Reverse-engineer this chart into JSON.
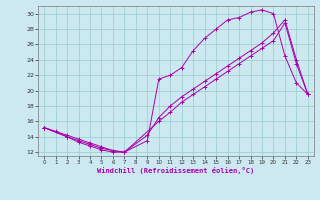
{
  "xlabel": "Windchill (Refroidissement éolien,°C)",
  "bg_color": "#cce8f0",
  "line_color": "#aa00aa",
  "grid_color": "#99cccc",
  "xlim": [
    -0.5,
    23.5
  ],
  "ylim": [
    11.5,
    31.0
  ],
  "xticks": [
    0,
    1,
    2,
    3,
    4,
    5,
    6,
    7,
    8,
    9,
    10,
    11,
    12,
    13,
    14,
    15,
    16,
    17,
    18,
    19,
    20,
    21,
    22,
    23
  ],
  "yticks": [
    12,
    14,
    16,
    18,
    20,
    22,
    24,
    26,
    28,
    30
  ],
  "s1_x": [
    0,
    1,
    2,
    3,
    4,
    5,
    6,
    7,
    9,
    10,
    11,
    12,
    13,
    14,
    15,
    16,
    17,
    18,
    19,
    20,
    21,
    22,
    23
  ],
  "s1_y": [
    15.2,
    14.7,
    14.2,
    13.7,
    13.2,
    12.7,
    12.2,
    12.0,
    13.5,
    21.5,
    22.0,
    23.0,
    25.2,
    26.8,
    28.0,
    29.2,
    29.5,
    30.2,
    30.5,
    30.0,
    24.5,
    21.0,
    19.5
  ],
  "s2_x": [
    0,
    2,
    3,
    4,
    5,
    6,
    7,
    9,
    10,
    11,
    12,
    13,
    14,
    15,
    16,
    17,
    18,
    19,
    20,
    21,
    22,
    23
  ],
  "s2_y": [
    15.2,
    14.0,
    13.5,
    13.0,
    12.5,
    12.2,
    12.0,
    14.2,
    16.5,
    18.0,
    19.2,
    20.2,
    21.2,
    22.2,
    23.2,
    24.2,
    25.2,
    26.2,
    27.5,
    29.2,
    24.0,
    19.5
  ],
  "s3_x": [
    0,
    2,
    3,
    4,
    5,
    6,
    7,
    10,
    11,
    12,
    13,
    14,
    15,
    16,
    17,
    18,
    19,
    20,
    21,
    22,
    23
  ],
  "s3_y": [
    15.2,
    14.0,
    13.3,
    12.8,
    12.3,
    12.0,
    12.0,
    16.0,
    17.2,
    18.5,
    19.5,
    20.5,
    21.5,
    22.5,
    23.5,
    24.5,
    25.5,
    26.5,
    28.8,
    23.5,
    19.5
  ]
}
